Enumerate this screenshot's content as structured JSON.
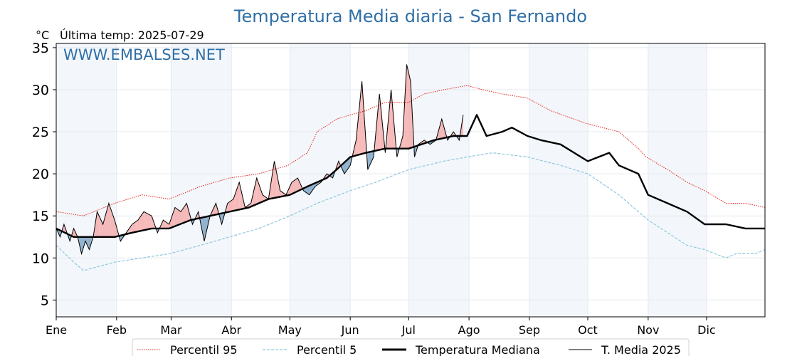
{
  "chart_data": {
    "type": "line",
    "title": "Temperatura Media diaria - San Fernando",
    "unit": "°C",
    "subtitle": "Última temp: 2025-07-29",
    "watermark": "WWW.EMBALSES.NET",
    "ylim": [
      3,
      35.5
    ],
    "yticks": [
      5,
      10,
      15,
      20,
      25,
      30,
      35
    ],
    "xlim": [
      1,
      365
    ],
    "months": [
      "Ene",
      "Feb",
      "Mar",
      "Abr",
      "May",
      "Jun",
      "Jul",
      "Ago",
      "Sep",
      "Oct",
      "Nov",
      "Dic"
    ],
    "month_starts": [
      1,
      32,
      60,
      91,
      121,
      152,
      182,
      213,
      244,
      274,
      305,
      335
    ],
    "grid": true,
    "legend_placement": "bottom-center",
    "series": [
      {
        "name": "Percentil 95",
        "color": "#e8201a",
        "style": "dotted",
        "x": [
          1,
          15,
          31,
          45,
          59,
          75,
          90,
          105,
          120,
          130,
          135,
          145,
          152,
          160,
          170,
          182,
          190,
          200,
          212,
          220,
          230,
          243,
          255,
          273,
          290,
          300,
          304,
          315,
          325,
          334,
          345,
          355,
          365
        ],
        "y": [
          15.5,
          15.0,
          16.5,
          17.5,
          17.0,
          18.5,
          19.5,
          20.0,
          21.0,
          22.5,
          25.0,
          26.5,
          27.0,
          27.5,
          28.5,
          28.5,
          29.5,
          30.0,
          30.5,
          30.0,
          29.5,
          29.0,
          27.5,
          26.0,
          25.0,
          23.0,
          22.0,
          20.5,
          19.0,
          18.0,
          16.5,
          16.5,
          16.0
        ]
      },
      {
        "name": "Percentil 5",
        "color": "#8fc7dd",
        "style": "dashed",
        "x": [
          1,
          10,
          15,
          31,
          45,
          59,
          75,
          90,
          105,
          121,
          135,
          152,
          165,
          182,
          200,
          212,
          225,
          243,
          260,
          274,
          290,
          305,
          315,
          325,
          334,
          345,
          350,
          360,
          365
        ],
        "y": [
          11.5,
          9.5,
          8.5,
          9.5,
          10.0,
          10.5,
          11.5,
          12.5,
          13.5,
          15.0,
          16.5,
          18.0,
          19.0,
          20.5,
          21.5,
          22.0,
          22.5,
          22.0,
          21.0,
          20.0,
          17.5,
          14.5,
          13.0,
          11.5,
          11.0,
          10.0,
          10.5,
          10.5,
          11.0
        ]
      },
      {
        "name": "Temperatura Mediana",
        "color": "#000000",
        "style": "bold",
        "x": [
          1,
          10,
          20,
          31,
          40,
          50,
          59,
          70,
          80,
          90,
          100,
          110,
          121,
          130,
          140,
          145,
          152,
          160,
          170,
          182,
          195,
          205,
          212,
          217,
          222,
          230,
          235,
          243,
          250,
          260,
          274,
          285,
          290,
          300,
          305,
          315,
          325,
          334,
          345,
          355,
          365
        ],
        "y": [
          13.5,
          12.5,
          12.5,
          12.5,
          13.0,
          13.5,
          13.5,
          14.5,
          15.0,
          15.5,
          16.0,
          17.0,
          17.5,
          18.5,
          19.5,
          20.5,
          22.0,
          22.5,
          23.0,
          23.0,
          24.0,
          24.5,
          24.5,
          27.0,
          24.5,
          25.0,
          25.5,
          24.5,
          24.0,
          23.5,
          21.5,
          22.5,
          21.0,
          20.0,
          17.5,
          16.5,
          15.5,
          14.0,
          14.0,
          13.5,
          13.5
        ]
      },
      {
        "name": "T. Media 2025",
        "color": "#000000",
        "style": "thin",
        "x": [
          1,
          3,
          5,
          8,
          10,
          12,
          14,
          16,
          18,
          20,
          22,
          25,
          28,
          31,
          34,
          37,
          40,
          43,
          46,
          50,
          53,
          56,
          59,
          62,
          65,
          68,
          71,
          74,
          77,
          80,
          83,
          86,
          89,
          92,
          95,
          98,
          101,
          104,
          107,
          110,
          113,
          116,
          119,
          122,
          125,
          128,
          131,
          134,
          137,
          140,
          143,
          146,
          149,
          152,
          155,
          158,
          161,
          164,
          167,
          170,
          173,
          176,
          179,
          181,
          183,
          185,
          187,
          190,
          193,
          196,
          199,
          202,
          205,
          208,
          210
        ],
        "y": [
          13.5,
          12.5,
          14.0,
          12.0,
          13.5,
          12.5,
          10.5,
          12.0,
          11.0,
          12.5,
          15.5,
          14.0,
          16.5,
          14.5,
          12.0,
          13.0,
          14.0,
          14.5,
          15.5,
          15.0,
          13.0,
          14.5,
          14.0,
          16.0,
          15.5,
          16.5,
          14.0,
          15.5,
          12.0,
          15.0,
          16.5,
          14.0,
          16.5,
          17.0,
          19.0,
          16.0,
          16.5,
          19.5,
          17.5,
          17.0,
          21.5,
          18.0,
          17.5,
          19.0,
          19.5,
          18.0,
          17.5,
          18.5,
          19.0,
          20.0,
          19.5,
          21.5,
          20.0,
          21.0,
          24.0,
          31.0,
          20.5,
          22.0,
          29.5,
          22.5,
          30.0,
          22.0,
          24.5,
          33.0,
          31.0,
          22.0,
          23.5,
          24.0,
          23.5,
          24.0,
          26.5,
          24.0,
          25.0,
          24.0,
          27.0
        ]
      }
    ]
  }
}
